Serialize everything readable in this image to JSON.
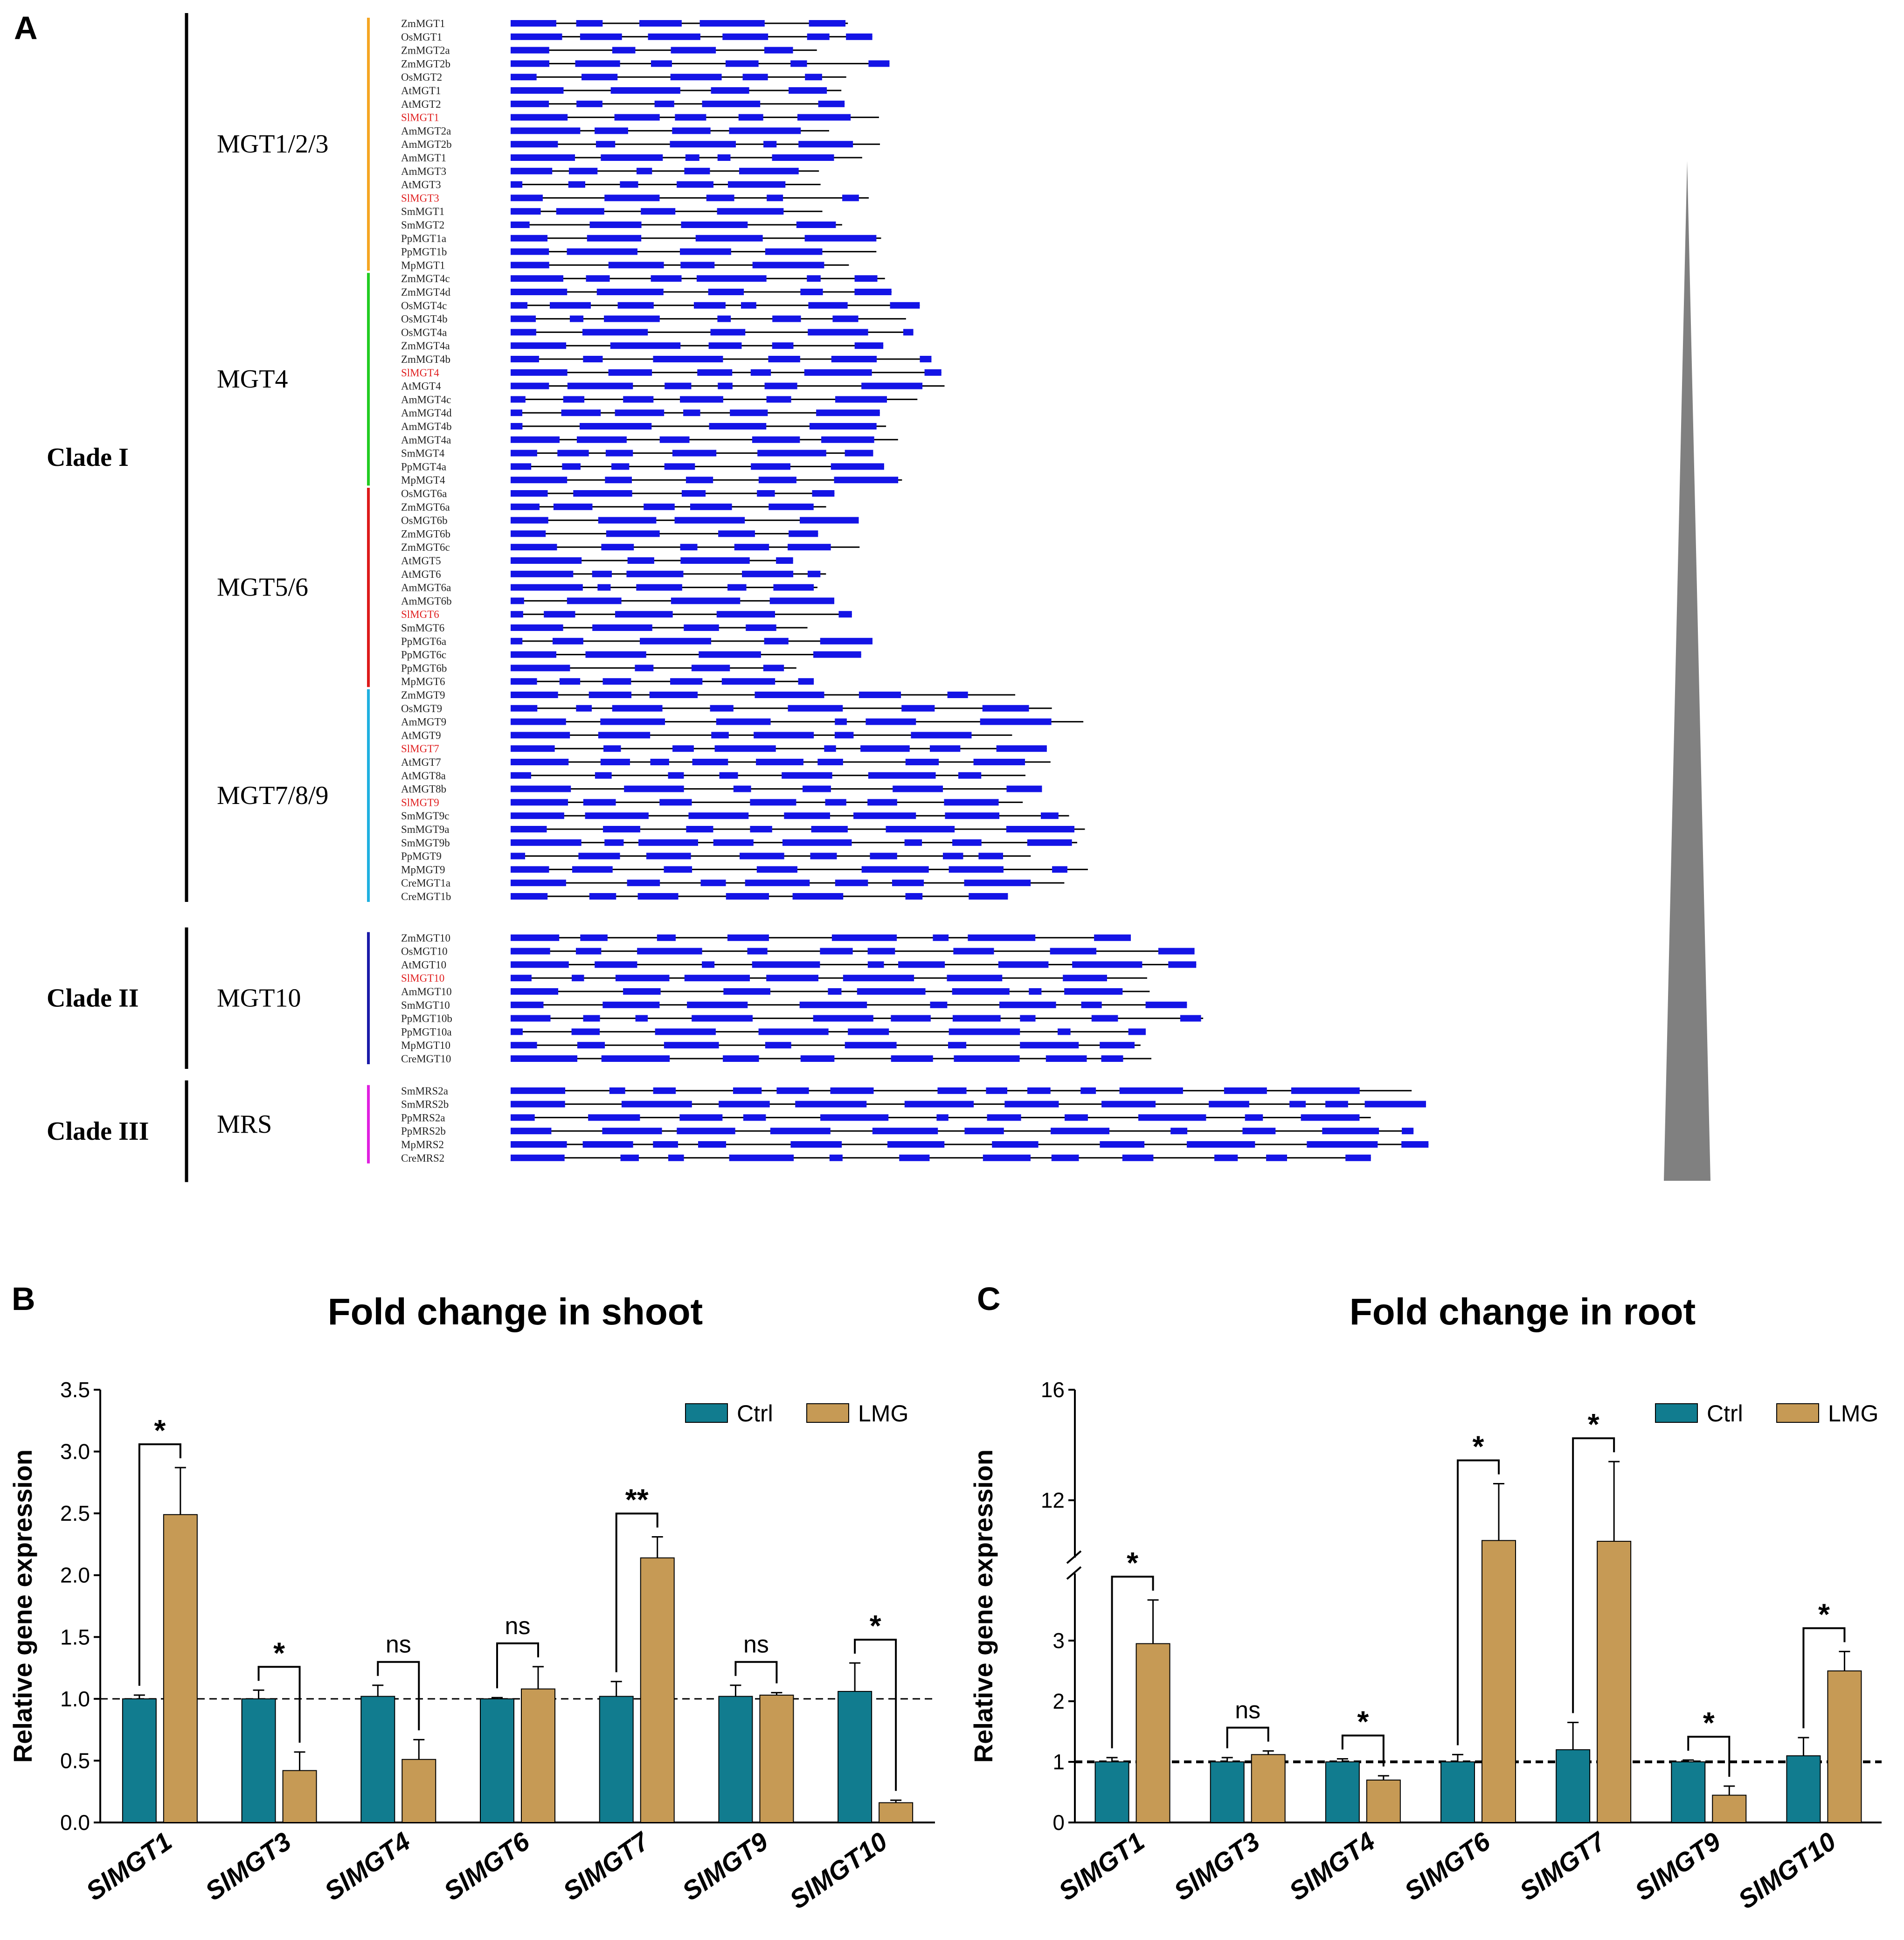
{
  "panels": {
    "a": "A",
    "b": "B",
    "c": "C"
  },
  "tree": {
    "clades": [
      {
        "label": "Clade I",
        "groups": [
          "MGT1/2/3",
          "MGT4",
          "MGT5/6",
          "MGT7/8/9"
        ]
      },
      {
        "label": "Clade II",
        "groups": [
          "MGT10"
        ]
      },
      {
        "label": "Clade III",
        "groups": [
          "MRS"
        ]
      }
    ],
    "groups": [
      {
        "name": "MGT1/2/3",
        "color": "#F5A623",
        "genes": [
          "ZmMGT1",
          "OsMGT1",
          "ZmMGT2a",
          "ZmMGT2b",
          "OsMGT2",
          "AtMGT1",
          "AtMGT2",
          "SlMGT1",
          "AmMGT2a",
          "AmMGT2b",
          "AmMGT1",
          "AmMGT3",
          "AtMGT3",
          "SlMGT3",
          "SmMGT1",
          "SmMGT2",
          "PpMGT1a",
          "PpMGT1b",
          "MpMGT1"
        ]
      },
      {
        "name": "MGT4",
        "color": "#22CC22",
        "genes": [
          "ZmMGT4c",
          "ZmMGT4d",
          "OsMGT4c",
          "OsMGT4b",
          "OsMGT4a",
          "ZmMGT4a",
          "ZmMGT4b",
          "SlMGT4",
          "AtMGT4",
          "AmMGT4c",
          "AmMGT4d",
          "AmMGT4b",
          "AmMGT4a",
          "SmMGT4",
          "PpMGT4a",
          "MpMGT4"
        ]
      },
      {
        "name": "MGT5/6",
        "color": "#DD1A1A",
        "genes": [
          "OsMGT6a",
          "ZmMGT6a",
          "OsMGT6b",
          "ZmMGT6b",
          "ZmMGT6c",
          "AtMGT5",
          "AtMGT6",
          "AmMGT6a",
          "AmMGT6b",
          "SlMGT6",
          "SmMGT6",
          "PpMGT6a",
          "PpMGT6c",
          "PpMGT6b",
          "MpMGT6"
        ]
      },
      {
        "name": "MGT7/8/9",
        "color": "#1FB0E0",
        "genes": [
          "ZmMGT9",
          "OsMGT9",
          "AmMGT9",
          "AtMGT9",
          "SlMGT7",
          "AtMGT7",
          "AtMGT8a",
          "AtMGT8b",
          "SlMGT9",
          "SmMGT9c",
          "SmMGT9a",
          "SmMGT9b",
          "PpMGT9",
          "MpMGT9",
          "CreMGT1a",
          "CreMGT1b"
        ]
      },
      {
        "name": "MGT10",
        "color": "#1A1AA8",
        "genes": [
          "ZmMGT10",
          "OsMGT10",
          "AtMGT10",
          "SlMGT10",
          "AmMGT10",
          "SmMGT10",
          "PpMGT10b",
          "PpMGT10a",
          "MpMGT10",
          "CreMGT10"
        ]
      },
      {
        "name": "MRS",
        "color": "#E020E0",
        "genes": [
          "SmMRS2a",
          "SmMRS2b",
          "PpMRS2a",
          "PpMRS2b",
          "MpMRS2",
          "CreMRS2"
        ]
      }
    ],
    "highlight_color": "#E02020",
    "exon_color": "#1414E6",
    "gradient_color": "#808080"
  },
  "chart_data": [
    {
      "type": "bar",
      "title": "Fold change in shoot",
      "ylabel": "Relative gene expression",
      "xlabel": "",
      "ylim": [
        0,
        3.5
      ],
      "yticks": [
        "0.0",
        "0.5",
        "1.0",
        "1.5",
        "2.0",
        "2.5",
        "3.0",
        "3.5"
      ],
      "categories": [
        "SlMGT1",
        "SlMGT3",
        "SlMGT4",
        "SlMGT6",
        "SlMGT7",
        "SlMGT9",
        "SlMGT10"
      ],
      "series": [
        {
          "name": "Ctrl",
          "color": "#117C8F",
          "values": [
            1.0,
            1.0,
            1.02,
            1.0,
            1.02,
            1.02,
            1.06
          ],
          "errors": [
            0.03,
            0.07,
            0.09,
            0.01,
            0.12,
            0.09,
            0.23
          ]
        },
        {
          "name": "LMG",
          "color": "#C69A55",
          "values": [
            2.49,
            0.42,
            0.51,
            1.08,
            2.14,
            1.03,
            0.16
          ],
          "errors": [
            0.38,
            0.15,
            0.16,
            0.18,
            0.17,
            0.02,
            0.02
          ]
        }
      ],
      "significance": [
        "*",
        "*",
        "ns",
        "ns",
        "**",
        "ns",
        "*"
      ],
      "reference_line": 1.0
    },
    {
      "type": "bar",
      "title": "Fold change in root",
      "ylabel": "Relative gene expression",
      "xlabel": "",
      "ylim": [
        0,
        16
      ],
      "axis_break": [
        3.8,
        10.6
      ],
      "yticks": [
        "0",
        "1",
        "2",
        "3",
        "12",
        "16"
      ],
      "categories": [
        "SlMGT1",
        "SlMGT3",
        "SlMGT4",
        "SlMGT6",
        "SlMGT7",
        "SlMGT9",
        "SlMGT10"
      ],
      "series": [
        {
          "name": "Ctrl",
          "color": "#117C8F",
          "values": [
            1.0,
            1.0,
            1.0,
            1.0,
            1.2,
            1.0,
            1.1
          ],
          "errors": [
            0.07,
            0.07,
            0.05,
            0.12,
            0.45,
            0.03,
            0.3
          ]
        },
        {
          "name": "LMG",
          "color": "#C69A55",
          "values": [
            2.95,
            1.12,
            0.7,
            10.4,
            10.3,
            0.45,
            2.5
          ],
          "errors": [
            0.72,
            0.06,
            0.07,
            2.2,
            3.1,
            0.15,
            0.32
          ]
        }
      ],
      "significance": [
        "*",
        "ns",
        "*",
        "*",
        "*",
        "*",
        "*"
      ],
      "reference_line": 1.0
    }
  ]
}
